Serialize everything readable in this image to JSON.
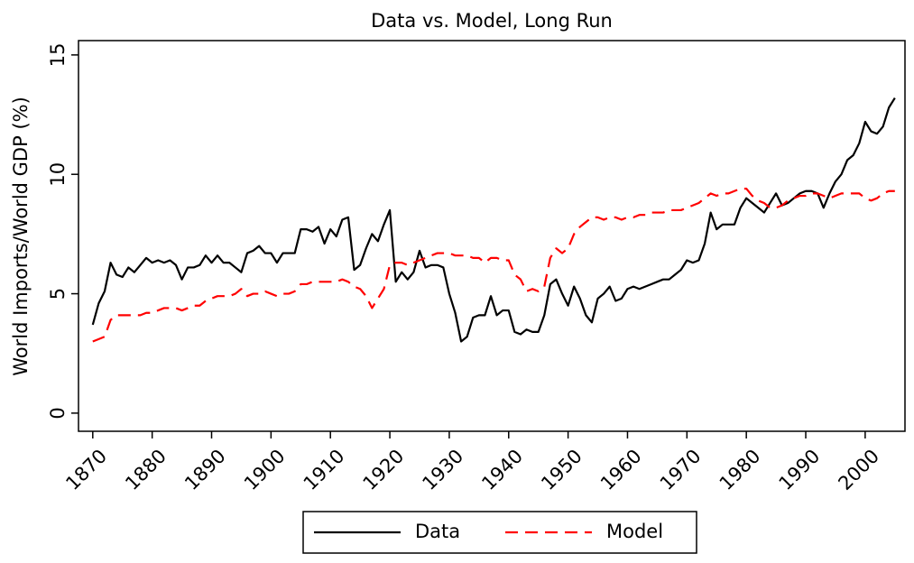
{
  "chart_data": {
    "type": "line",
    "title": "Data vs. Model, Long Run",
    "y_label": "World Imports/World GDP (%)",
    "x": [
      1870,
      1871,
      1872,
      1873,
      1874,
      1875,
      1876,
      1877,
      1878,
      1879,
      1880,
      1881,
      1882,
      1883,
      1884,
      1885,
      1886,
      1887,
      1888,
      1889,
      1890,
      1891,
      1892,
      1893,
      1894,
      1895,
      1896,
      1897,
      1898,
      1899,
      1900,
      1901,
      1902,
      1903,
      1904,
      1905,
      1906,
      1907,
      1908,
      1909,
      1910,
      1911,
      1912,
      1913,
      1914,
      1915,
      1916,
      1917,
      1918,
      1919,
      1920,
      1921,
      1922,
      1923,
      1924,
      1925,
      1926,
      1927,
      1928,
      1929,
      1930,
      1931,
      1932,
      1933,
      1934,
      1935,
      1936,
      1937,
      1938,
      1939,
      1940,
      1941,
      1942,
      1943,
      1944,
      1945,
      1946,
      1947,
      1948,
      1949,
      1950,
      1951,
      1952,
      1953,
      1954,
      1955,
      1956,
      1957,
      1958,
      1959,
      1960,
      1961,
      1962,
      1963,
      1964,
      1965,
      1966,
      1967,
      1968,
      1969,
      1970,
      1971,
      1972,
      1973,
      1974,
      1975,
      1976,
      1977,
      1978,
      1979,
      1980,
      1981,
      1982,
      1983,
      1984,
      1985,
      1986,
      1987,
      1988,
      1989,
      1990,
      1991,
      1992,
      1993,
      1994,
      1995,
      1996,
      1997,
      1998,
      1999,
      2000,
      2001,
      2002,
      2003,
      2004,
      2005
    ],
    "series": [
      {
        "name": "Data",
        "color": "#000000",
        "dash": "solid",
        "values": [
          3.7,
          4.6,
          5.1,
          6.3,
          5.8,
          5.7,
          6.1,
          5.9,
          6.2,
          6.5,
          6.3,
          6.4,
          6.3,
          6.4,
          6.2,
          5.6,
          6.1,
          6.1,
          6.2,
          6.6,
          6.3,
          6.6,
          6.3,
          6.3,
          6.1,
          5.9,
          6.7,
          6.8,
          7.0,
          6.7,
          6.7,
          6.3,
          6.7,
          6.7,
          6.7,
          7.7,
          7.7,
          7.6,
          7.8,
          7.1,
          7.7,
          7.4,
          8.1,
          8.2,
          6.0,
          6.2,
          6.9,
          7.5,
          7.2,
          7.9,
          8.5,
          5.5,
          5.9,
          5.6,
          5.9,
          6.8,
          6.1,
          6.2,
          6.2,
          6.1,
          5.0,
          4.2,
          3.0,
          3.2,
          4.0,
          4.1,
          4.1,
          4.9,
          4.1,
          4.3,
          4.3,
          3.4,
          3.3,
          3.5,
          3.4,
          3.4,
          4.1,
          5.4,
          5.6,
          5.0,
          4.5,
          5.3,
          4.8,
          4.1,
          3.8,
          4.8,
          5.0,
          5.3,
          4.7,
          4.8,
          5.2,
          5.3,
          5.2,
          5.3,
          5.4,
          5.5,
          5.6,
          5.6,
          5.8,
          6.0,
          6.4,
          6.3,
          6.4,
          7.1,
          8.4,
          7.7,
          7.9,
          7.9,
          7.9,
          8.6,
          9.0,
          8.8,
          8.6,
          8.4,
          8.8,
          9.2,
          8.7,
          8.8,
          9.0,
          9.2,
          9.3,
          9.3,
          9.2,
          8.6,
          9.2,
          9.7,
          10.0,
          10.6,
          10.8,
          11.3,
          12.2,
          11.8,
          11.7,
          12.0,
          12.8,
          13.2
        ]
      },
      {
        "name": "Model",
        "color": "#ff0000",
        "dash": "dashed",
        "values": [
          3.0,
          3.1,
          3.2,
          3.9,
          4.1,
          4.1,
          4.1,
          4.1,
          4.1,
          4.2,
          4.2,
          4.3,
          4.4,
          4.4,
          4.4,
          4.3,
          4.4,
          4.5,
          4.5,
          4.7,
          4.8,
          4.9,
          4.9,
          4.9,
          5.0,
          5.2,
          4.9,
          5.0,
          5.0,
          5.1,
          5.0,
          4.9,
          5.0,
          5.0,
          5.1,
          5.4,
          5.4,
          5.5,
          5.5,
          5.5,
          5.5,
          5.5,
          5.6,
          5.5,
          5.3,
          5.2,
          4.9,
          4.4,
          4.8,
          5.2,
          6.2,
          6.3,
          6.3,
          6.2,
          6.3,
          6.4,
          6.5,
          6.6,
          6.7,
          6.7,
          6.7,
          6.6,
          6.6,
          6.6,
          6.5,
          6.5,
          6.3,
          6.5,
          6.5,
          6.4,
          6.4,
          5.8,
          5.6,
          5.1,
          5.2,
          5.1,
          5.3,
          6.5,
          6.9,
          6.7,
          6.9,
          7.5,
          7.8,
          8.0,
          8.2,
          8.2,
          8.1,
          8.2,
          8.2,
          8.1,
          8.2,
          8.2,
          8.3,
          8.3,
          8.4,
          8.4,
          8.4,
          8.5,
          8.5,
          8.5,
          8.6,
          8.7,
          8.8,
          9.0,
          9.2,
          9.1,
          9.2,
          9.2,
          9.3,
          9.4,
          9.4,
          9.1,
          8.9,
          8.8,
          8.6,
          8.6,
          8.7,
          8.9,
          9.0,
          9.1,
          9.1,
          9.2,
          9.2,
          9.1,
          9.0,
          9.1,
          9.2,
          9.2,
          9.2,
          9.2,
          9.0,
          8.9,
          9.0,
          9.2,
          9.3,
          9.3
        ]
      }
    ],
    "xlim": [
      1867.6,
      2006.7
    ],
    "ylim": [
      -0.76,
      15.6
    ],
    "xticks": [
      1870,
      1880,
      1890,
      1900,
      1910,
      1920,
      1930,
      1940,
      1950,
      1960,
      1970,
      1980,
      1990,
      2000
    ],
    "yticks": [
      0,
      5,
      10,
      15
    ],
    "grid": false,
    "legend": "bottom"
  }
}
